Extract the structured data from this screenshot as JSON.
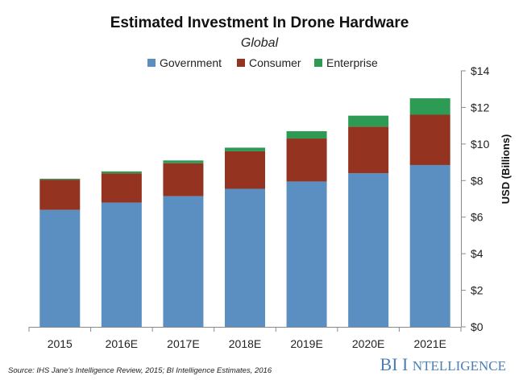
{
  "chart_data": {
    "type": "bar",
    "stacked": true,
    "title": "Estimated Investment In Drone Hardware",
    "subtitle": "Global",
    "categories": [
      "2015",
      "2016E",
      "2017E",
      "2018E",
      "2019E",
      "2020E",
      "2021E"
    ],
    "series": [
      {
        "name": "Government",
        "color": "#5b8ec1",
        "values": [
          6.4,
          6.8,
          7.15,
          7.55,
          7.95,
          8.4,
          8.85
        ]
      },
      {
        "name": "Consumer",
        "color": "#943320",
        "values": [
          1.65,
          1.6,
          1.8,
          2.05,
          2.35,
          2.55,
          2.75
        ]
      },
      {
        "name": "Enterprise",
        "color": "#2e9b55",
        "values": [
          0.05,
          0.1,
          0.15,
          0.2,
          0.4,
          0.6,
          0.9
        ]
      }
    ],
    "ylabel": "USD (Billions)",
    "ylim": [
      0,
      14
    ],
    "yticks": [
      "$0",
      "$2",
      "$4",
      "$6",
      "$8",
      "$10",
      "$12",
      "$14"
    ],
    "ytick_values": [
      0,
      2,
      4,
      6,
      8,
      10,
      12,
      14
    ],
    "y_axis_side": "right",
    "grid": false,
    "legend_position": "top-center"
  },
  "footer": {
    "source": "Source: IHS Jane's Intelligence Review, 2015; BI Intelligence Estimates, 2016",
    "brand_bi": "BI",
    "brand_i": "I",
    "brand_ntelligence": "NTELLIGENCE"
  }
}
